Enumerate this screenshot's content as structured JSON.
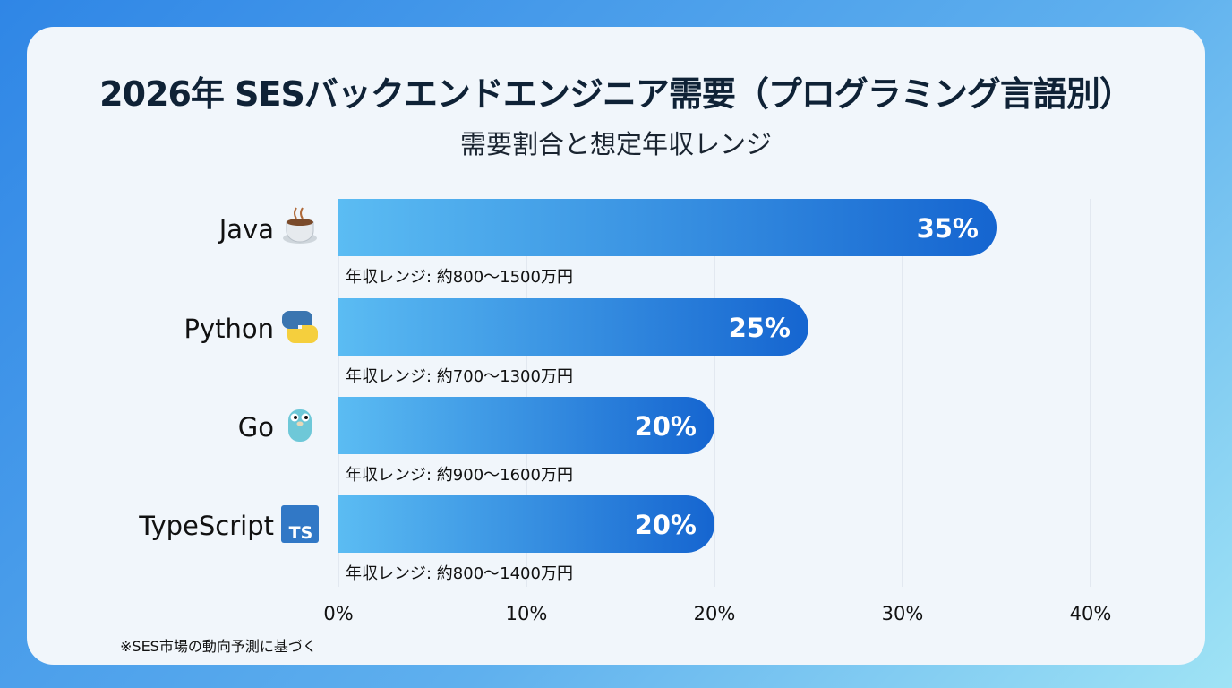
{
  "title": "2026年 SESバックエンドエンジニア需要（プログラミング言語別）",
  "subtitle": "需要割合と想定年収レンジ",
  "footnote": "※SES市場の動向予測に基づく",
  "colors": {
    "bar_start": "#5bbcf3",
    "bar_end": "#1565d0",
    "title": "#0f2236"
  },
  "chart_data": {
    "type": "bar",
    "orientation": "horizontal",
    "categories": [
      "Java",
      "Python",
      "Go",
      "TypeScript"
    ],
    "icons": [
      "coffee-cup-icon",
      "python-logo-icon",
      "go-gopher-icon",
      "typescript-logo-icon"
    ],
    "values": [
      35,
      25,
      20,
      20
    ],
    "data_labels": [
      "35%",
      "25%",
      "20%",
      "20%"
    ],
    "salary_labels": [
      "年収レンジ: 約800〜1500万円",
      "年収レンジ: 約700〜1300万円",
      "年収レンジ: 約900〜1600万円",
      "年収レンジ: 約800〜1400万円"
    ],
    "xlim": [
      0,
      40
    ],
    "xticks": [
      "0%",
      "10%",
      "20%",
      "30%",
      "40%"
    ],
    "grid": true,
    "xlabel": "",
    "ylabel": ""
  }
}
